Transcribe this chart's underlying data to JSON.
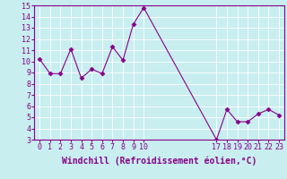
{
  "x_values": [
    0,
    1,
    2,
    3,
    4,
    5,
    6,
    7,
    8,
    9,
    10,
    17,
    18,
    19,
    20,
    21,
    22,
    23
  ],
  "y_values": [
    10.2,
    8.9,
    8.9,
    11.1,
    8.5,
    9.3,
    8.9,
    11.3,
    10.1,
    13.3,
    14.8,
    3.0,
    5.7,
    4.6,
    4.6,
    5.3,
    5.7,
    5.2
  ],
  "x_tick_labels": [
    "0",
    "1",
    "2",
    "3",
    "4",
    "5",
    "6",
    "7",
    "8",
    "9",
    "10",
    "17",
    "18",
    "19",
    "20",
    "21",
    "22",
    "23"
  ],
  "x_tick_positions": [
    0,
    1,
    2,
    3,
    4,
    5,
    6,
    7,
    8,
    9,
    10,
    17,
    18,
    19,
    20,
    21,
    22,
    23
  ],
  "ylim": [
    3,
    15
  ],
  "xlim": [
    -0.5,
    23.5
  ],
  "yticks": [
    3,
    4,
    5,
    6,
    7,
    8,
    9,
    10,
    11,
    12,
    13,
    14,
    15
  ],
  "xlabel": "Windchill (Refroidissement éolien,°C)",
  "line_color": "#880088",
  "marker": "D",
  "bg_color": "#c8eef0",
  "grid_color": "#ffffff",
  "tick_fontsize": 6,
  "label_fontsize": 7
}
